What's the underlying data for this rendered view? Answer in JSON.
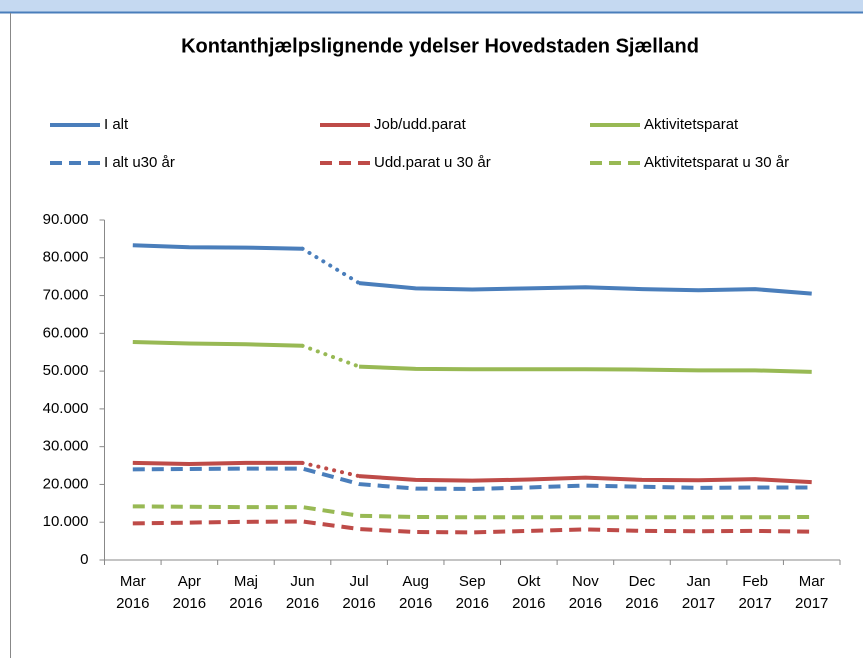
{
  "chart_data": {
    "type": "line",
    "title": "Kontanthjælpslignende ydelser Hovedstaden Sjælland",
    "categories": [
      [
        "Mar",
        "2016"
      ],
      [
        "Apr",
        "2016"
      ],
      [
        "Maj",
        "2016"
      ],
      [
        "Jun",
        "2016"
      ],
      [
        "Jul",
        "2016"
      ],
      [
        "Aug",
        "2016"
      ],
      [
        "Sep",
        "2016"
      ],
      [
        "Okt",
        "2016"
      ],
      [
        "Nov",
        "2016"
      ],
      [
        "Dec",
        "2016"
      ],
      [
        "Jan",
        "2017"
      ],
      [
        "Feb",
        "2017"
      ],
      [
        "Mar",
        "2017"
      ]
    ],
    "series": [
      {
        "name": "I alt",
        "color": "#4a7ebb",
        "dash": "solid",
        "values": [
          83300,
          82800,
          82700,
          82400,
          73300,
          71900,
          71600,
          71900,
          72200,
          71700,
          71400,
          71700,
          70500
        ]
      },
      {
        "name": "Job/udd.parat",
        "color": "#be4b48",
        "dash": "solid",
        "values": [
          25700,
          25400,
          25700,
          25700,
          22200,
          21200,
          21000,
          21300,
          21800,
          21200,
          21100,
          21400,
          20600
        ]
      },
      {
        "name": "Aktivitetsparat",
        "color": "#98b954",
        "dash": "solid",
        "values": [
          57700,
          57300,
          57100,
          56700,
          51200,
          50600,
          50500,
          50500,
          50500,
          50400,
          50200,
          50200,
          49800
        ]
      },
      {
        "name": "I alt u30 år",
        "color": "#4a7ebb",
        "dash": "dashed",
        "values": [
          24000,
          24100,
          24200,
          24200,
          20100,
          18900,
          18800,
          19200,
          19700,
          19400,
          19100,
          19200,
          19200
        ]
      },
      {
        "name": "Udd.parat u 30 år",
        "color": "#be4b48",
        "dash": "dashed",
        "values": [
          9700,
          9900,
          10100,
          10200,
          8200,
          7400,
          7300,
          7700,
          8100,
          7700,
          7600,
          7700,
          7500
        ]
      },
      {
        "name": "Aktivitetsparat u 30 år",
        "color": "#98b954",
        "dash": "dashed",
        "values": [
          14200,
          14100,
          14000,
          14000,
          11700,
          11400,
          11300,
          11300,
          11300,
          11300,
          11300,
          11300,
          11400
        ]
      }
    ],
    "ylim": [
      0,
      90000
    ],
    "yticks": [
      0,
      {
        "value": 10000,
        "label": "10.000"
      },
      {
        "value": 20000,
        "label": "20.000"
      },
      {
        "value": 30000,
        "label": "30.000"
      },
      {
        "value": 40000,
        "label": "40.000"
      },
      {
        "value": 50000,
        "label": "50.000"
      },
      {
        "value": 60000,
        "label": "60.000"
      },
      {
        "value": 70000,
        "label": "70.000"
      },
      {
        "value": 80000,
        "label": "80.000"
      },
      {
        "value": 90000,
        "label": "90.000"
      }
    ],
    "legend": "top"
  }
}
